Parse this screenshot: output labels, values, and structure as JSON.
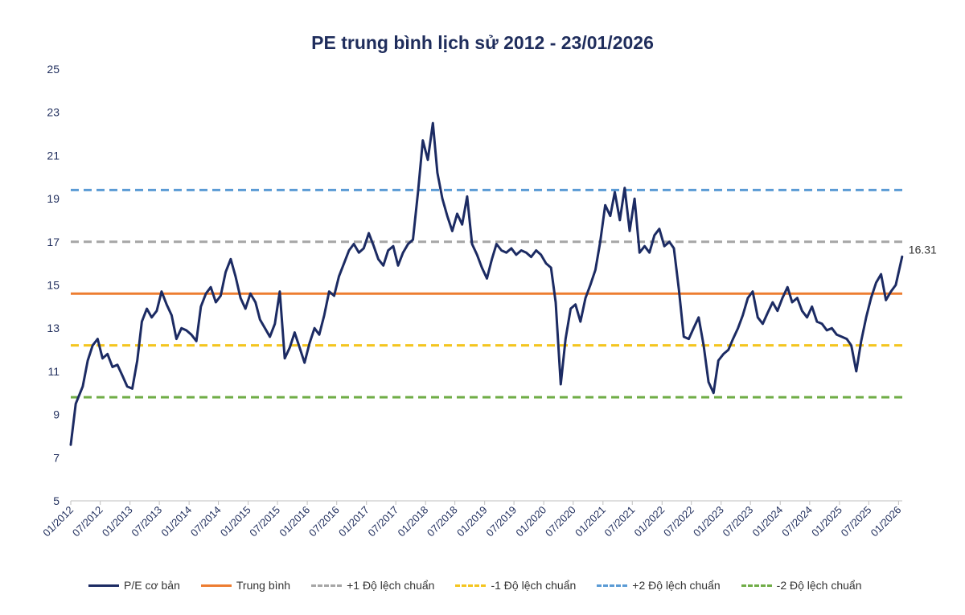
{
  "chart_data": {
    "type": "line",
    "title": "PE trung bình lịch sử 2012 - 23/01/2026",
    "xlabel": "",
    "ylabel": "",
    "ylim": [
      5,
      25
    ],
    "yticks": [
      5,
      7,
      9,
      11,
      13,
      15,
      17,
      19,
      21,
      23,
      25
    ],
    "x_ticks": [
      "01/2012",
      "07/2012",
      "01/2013",
      "07/2013",
      "01/2014",
      "07/2014",
      "01/2015",
      "07/2015",
      "01/2016",
      "07/2016",
      "01/2017",
      "07/2017",
      "01/2018",
      "07/2018",
      "01/2019",
      "07/2019",
      "01/2020",
      "07/2020",
      "01/2021",
      "07/2021",
      "01/2022",
      "07/2022",
      "01/2023",
      "07/2023",
      "01/2024",
      "07/2024",
      "01/2025",
      "07/2025",
      "01/2026"
    ],
    "grid": false,
    "legend_position": "bottom",
    "last_value_label": "16.31",
    "series": [
      {
        "name": "P/E cơ bản",
        "color": "#1c2b63",
        "style": "solid",
        "x": [
          "2012-01-01",
          "2012-02-01",
          "2012-03-15",
          "2012-04-15",
          "2012-05-15",
          "2012-06-15",
          "2012-07-15",
          "2012-08-15",
          "2012-09-15",
          "2012-10-15",
          "2012-11-15",
          "2012-12-15",
          "2013-01-15",
          "2013-02-15",
          "2013-03-15",
          "2013-04-15",
          "2013-05-15",
          "2013-06-15",
          "2013-07-15",
          "2013-08-15",
          "2013-09-15",
          "2013-10-15",
          "2013-11-15",
          "2013-12-15",
          "2014-01-15",
          "2014-02-15",
          "2014-03-15",
          "2014-04-15",
          "2014-05-15",
          "2014-06-15",
          "2014-07-15",
          "2014-08-15",
          "2014-09-15",
          "2014-10-15",
          "2014-11-15",
          "2014-12-15",
          "2015-01-15",
          "2015-02-15",
          "2015-03-15",
          "2015-04-15",
          "2015-05-15",
          "2015-06-15",
          "2015-07-15",
          "2015-08-15",
          "2015-09-15",
          "2015-10-15",
          "2015-11-15",
          "2015-12-15",
          "2016-01-15",
          "2016-02-15",
          "2016-03-15",
          "2016-04-15",
          "2016-05-15",
          "2016-06-15",
          "2016-07-15",
          "2016-08-15",
          "2016-09-15",
          "2016-10-15",
          "2016-11-15",
          "2016-12-15",
          "2017-01-15",
          "2017-02-15",
          "2017-03-15",
          "2017-04-15",
          "2017-05-15",
          "2017-06-15",
          "2017-07-15",
          "2017-08-15",
          "2017-09-15",
          "2017-10-15",
          "2017-11-15",
          "2017-12-15",
          "2018-01-15",
          "2018-02-15",
          "2018-03-15",
          "2018-04-15",
          "2018-05-15",
          "2018-06-15",
          "2018-07-15",
          "2018-08-15",
          "2018-09-15",
          "2018-10-15",
          "2018-11-15",
          "2018-12-15",
          "2019-01-15",
          "2019-02-15",
          "2019-03-15",
          "2019-04-15",
          "2019-05-15",
          "2019-06-15",
          "2019-07-15",
          "2019-08-15",
          "2019-09-15",
          "2019-10-15",
          "2019-11-15",
          "2019-12-15",
          "2020-01-15",
          "2020-02-15",
          "2020-03-15",
          "2020-04-15",
          "2020-05-15",
          "2020-06-15",
          "2020-07-15",
          "2020-08-15",
          "2020-09-15",
          "2020-10-15",
          "2020-11-15",
          "2020-12-15",
          "2021-01-15",
          "2021-02-15",
          "2021-03-15",
          "2021-04-15",
          "2021-05-15",
          "2021-06-15",
          "2021-07-15",
          "2021-08-15",
          "2021-09-15",
          "2021-10-15",
          "2021-11-15",
          "2021-12-15",
          "2022-01-15",
          "2022-02-15",
          "2022-03-15",
          "2022-04-15",
          "2022-05-15",
          "2022-06-15",
          "2022-07-15",
          "2022-08-15",
          "2022-09-15",
          "2022-10-15",
          "2022-11-15",
          "2022-12-15",
          "2023-01-15",
          "2023-02-15",
          "2023-03-15",
          "2023-04-15",
          "2023-05-15",
          "2023-06-15",
          "2023-07-15",
          "2023-08-15",
          "2023-09-15",
          "2023-10-15",
          "2023-11-15",
          "2023-12-15",
          "2024-01-15",
          "2024-02-15",
          "2024-03-15",
          "2024-04-15",
          "2024-05-15",
          "2024-06-15",
          "2024-07-15",
          "2024-08-15",
          "2024-09-15",
          "2024-10-15",
          "2024-11-15",
          "2024-12-15",
          "2025-01-15",
          "2025-02-15",
          "2025-03-15",
          "2025-04-15",
          "2025-05-15",
          "2025-06-15",
          "2025-07-15",
          "2025-08-15",
          "2025-09-15",
          "2025-10-15",
          "2025-11-15",
          "2025-12-15",
          "2026-01-23"
        ],
        "values": [
          7.6,
          9.5,
          10.3,
          11.5,
          12.2,
          12.5,
          11.6,
          11.8,
          11.2,
          11.3,
          10.8,
          10.3,
          10.2,
          11.5,
          13.3,
          13.9,
          13.5,
          13.8,
          14.7,
          14.1,
          13.6,
          12.5,
          13.0,
          12.9,
          12.7,
          12.4,
          14.0,
          14.6,
          14.9,
          14.2,
          14.5,
          15.6,
          16.2,
          15.4,
          14.4,
          13.9,
          14.6,
          14.2,
          13.4,
          13.0,
          12.6,
          13.2,
          14.7,
          11.6,
          12.1,
          12.8,
          12.1,
          11.4,
          12.3,
          13.0,
          12.7,
          13.6,
          14.7,
          14.5,
          15.4,
          16.0,
          16.6,
          16.9,
          16.5,
          16.7,
          17.4,
          16.8,
          16.2,
          15.9,
          16.6,
          16.8,
          15.9,
          16.5,
          16.9,
          17.1,
          19.3,
          21.7,
          20.8,
          22.5,
          20.2,
          19.0,
          18.2,
          17.5,
          18.3,
          17.8,
          19.1,
          16.9,
          16.4,
          15.8,
          15.3,
          16.2,
          16.9,
          16.6,
          16.5,
          16.7,
          16.4,
          16.6,
          16.5,
          16.3,
          16.6,
          16.4,
          16.0,
          15.8,
          14.2,
          10.4,
          12.5,
          13.9,
          14.1,
          13.3,
          14.4,
          15.0,
          15.7,
          17.0,
          18.7,
          18.2,
          19.3,
          18.0,
          19.5,
          17.5,
          19.0,
          16.5,
          16.8,
          16.5,
          17.3,
          17.6,
          16.8,
          17.0,
          16.7,
          14.8,
          12.6,
          12.5,
          13.0,
          13.5,
          12.2,
          10.5,
          10.0,
          11.5,
          11.8,
          12.0,
          12.5,
          13.0,
          13.6,
          14.4,
          14.7,
          13.5,
          13.2,
          13.7,
          14.2,
          13.8,
          14.4,
          14.9,
          14.2,
          14.4,
          13.8,
          13.5,
          14.0,
          13.3,
          13.2,
          12.9,
          13.0,
          12.7,
          12.6,
          12.5,
          12.2,
          11.0,
          12.4,
          13.5,
          14.4,
          15.1,
          15.5,
          14.3,
          14.7,
          15.0,
          16.31
        ]
      },
      {
        "name": "Trung bình",
        "color": "#ed7d31",
        "style": "solid",
        "value": 14.6
      },
      {
        "name": "+1 Độ lệch chuẩn",
        "color": "#a6a6a6",
        "style": "dashed",
        "value": 17.0
      },
      {
        "name": "-1 Độ lệch chuẩn",
        "color": "#f4c51f",
        "style": "dashed",
        "value": 12.2
      },
      {
        "name": "+2 Độ lệch chuẩn",
        "color": "#5b9bd5",
        "style": "dashed",
        "value": 19.4
      },
      {
        "name": "-2 Độ lệch chuẩn",
        "color": "#70ad47",
        "style": "dashed",
        "value": 9.8
      }
    ]
  }
}
